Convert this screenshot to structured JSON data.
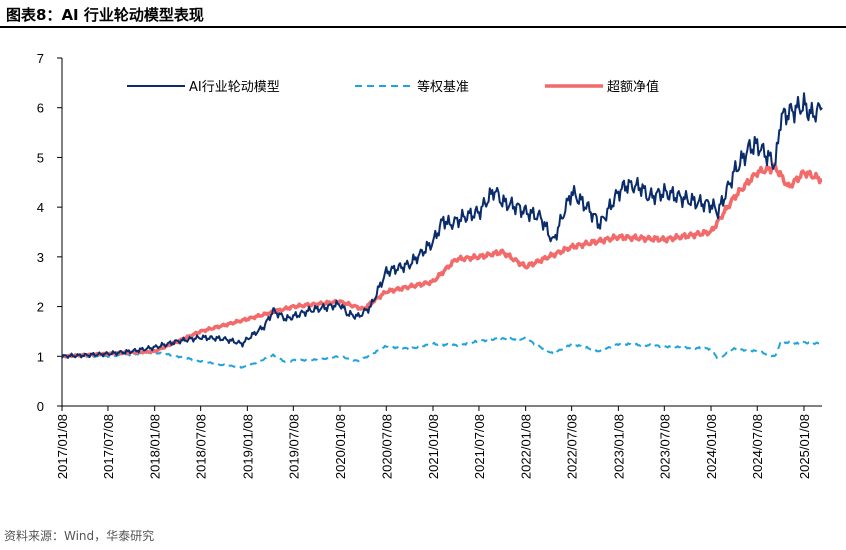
{
  "header": {
    "figure_label": "图表8：",
    "title": "AI 行业轮动模型表现"
  },
  "footer": {
    "source": "资料来源：Wind，华泰研究"
  },
  "colors": {
    "model": "#0b2c6b",
    "benchmark": "#1fa3dc",
    "excess": "#f26a6a"
  },
  "chart_data": {
    "type": "line",
    "ylim": [
      0,
      7
    ],
    "yticks": [
      "0",
      "1",
      "2",
      "3",
      "4",
      "5",
      "6",
      "7"
    ],
    "xlim": [
      "2017-01-08",
      "2025-03-20"
    ],
    "xticks": [
      "2017/01/08",
      "2017/07/08",
      "2018/01/08",
      "2018/07/08",
      "2019/01/08",
      "2019/07/08",
      "2020/01/08",
      "2020/07/08",
      "2021/01/08",
      "2021/07/08",
      "2022/01/08",
      "2022/07/08",
      "2023/01/08",
      "2023/07/08",
      "2024/01/08",
      "2024/07/08",
      "2025/01/08"
    ],
    "legend_position": "top",
    "grid": false,
    "series": [
      {
        "name": "AI行业轮动模型",
        "style": "solid",
        "points": [
          [
            "2017-01-08",
            1.0
          ],
          [
            "2017-04-08",
            1.02
          ],
          [
            "2017-07-08",
            1.05
          ],
          [
            "2017-10-08",
            1.1
          ],
          [
            "2018-01-08",
            1.18
          ],
          [
            "2018-04-08",
            1.3
          ],
          [
            "2018-07-08",
            1.38
          ],
          [
            "2018-10-08",
            1.35
          ],
          [
            "2018-12-20",
            1.25
          ],
          [
            "2019-01-08",
            1.35
          ],
          [
            "2019-03-15",
            1.6
          ],
          [
            "2019-04-20",
            1.92
          ],
          [
            "2019-06-10",
            1.75
          ],
          [
            "2019-07-08",
            1.8
          ],
          [
            "2019-09-08",
            1.92
          ],
          [
            "2019-11-08",
            1.98
          ],
          [
            "2020-01-08",
            2.05
          ],
          [
            "2020-02-08",
            1.85
          ],
          [
            "2020-03-20",
            1.8
          ],
          [
            "2020-05-08",
            2.0
          ],
          [
            "2020-07-08",
            2.7
          ],
          [
            "2020-08-08",
            2.75
          ],
          [
            "2020-10-08",
            2.85
          ],
          [
            "2021-01-08",
            3.3
          ],
          [
            "2021-02-18",
            3.75
          ],
          [
            "2021-03-15",
            3.65
          ],
          [
            "2021-05-08",
            3.8
          ],
          [
            "2021-07-08",
            3.9
          ],
          [
            "2021-09-08",
            4.35
          ],
          [
            "2021-10-08",
            4.1
          ],
          [
            "2021-12-08",
            4.0
          ],
          [
            "2022-01-08",
            3.9
          ],
          [
            "2022-03-08",
            3.8
          ],
          [
            "2022-04-26",
            3.3
          ],
          [
            "2022-06-08",
            3.9
          ],
          [
            "2022-07-08",
            4.3
          ],
          [
            "2022-09-08",
            4.0
          ],
          [
            "2022-10-28",
            3.65
          ],
          [
            "2023-01-08",
            4.3
          ],
          [
            "2023-02-08",
            4.45
          ],
          [
            "2023-04-08",
            4.4
          ],
          [
            "2023-05-08",
            4.2
          ],
          [
            "2023-07-08",
            4.3
          ],
          [
            "2023-09-08",
            4.2
          ],
          [
            "2023-11-08",
            4.1
          ],
          [
            "2024-01-08",
            4.05
          ],
          [
            "2024-02-05",
            3.9
          ],
          [
            "2024-04-08",
            4.7
          ],
          [
            "2024-06-08",
            5.2
          ],
          [
            "2024-07-08",
            5.25
          ],
          [
            "2024-09-18",
            4.85
          ],
          [
            "2024-10-08",
            5.8
          ],
          [
            "2024-11-08",
            5.9
          ],
          [
            "2025-01-08",
            6.05
          ],
          [
            "2025-02-08",
            5.85
          ],
          [
            "2025-03-20",
            6.0
          ]
        ]
      },
      {
        "name": "等权基准",
        "style": "dashed",
        "points": [
          [
            "2017-01-08",
            1.0
          ],
          [
            "2017-07-08",
            1.0
          ],
          [
            "2018-01-08",
            1.08
          ],
          [
            "2018-04-08",
            1.0
          ],
          [
            "2018-07-08",
            0.9
          ],
          [
            "2018-10-08",
            0.82
          ],
          [
            "2018-12-20",
            0.78
          ],
          [
            "2019-01-08",
            0.8
          ],
          [
            "2019-04-20",
            1.02
          ],
          [
            "2019-06-10",
            0.88
          ],
          [
            "2019-07-08",
            0.92
          ],
          [
            "2019-10-08",
            0.93
          ],
          [
            "2020-01-08",
            1.0
          ],
          [
            "2020-03-20",
            0.9
          ],
          [
            "2020-07-08",
            1.2
          ],
          [
            "2020-10-08",
            1.15
          ],
          [
            "2021-01-08",
            1.25
          ],
          [
            "2021-04-08",
            1.22
          ],
          [
            "2021-07-08",
            1.3
          ],
          [
            "2021-09-08",
            1.35
          ],
          [
            "2022-01-08",
            1.35
          ],
          [
            "2022-04-26",
            1.05
          ],
          [
            "2022-07-08",
            1.25
          ],
          [
            "2022-10-28",
            1.1
          ],
          [
            "2023-01-08",
            1.25
          ],
          [
            "2023-05-08",
            1.22
          ],
          [
            "2023-09-08",
            1.18
          ],
          [
            "2024-01-08",
            1.15
          ],
          [
            "2024-02-05",
            0.95
          ],
          [
            "2024-04-08",
            1.15
          ],
          [
            "2024-07-08",
            1.1
          ],
          [
            "2024-09-18",
            1.0
          ],
          [
            "2024-10-08",
            1.3
          ],
          [
            "2024-12-08",
            1.25
          ],
          [
            "2025-01-08",
            1.28
          ],
          [
            "2025-03-20",
            1.25
          ]
        ]
      },
      {
        "name": "超额净值",
        "style": "solid",
        "points": [
          [
            "2017-01-08",
            1.0
          ],
          [
            "2017-07-08",
            1.05
          ],
          [
            "2018-01-08",
            1.1
          ],
          [
            "2018-07-08",
            1.5
          ],
          [
            "2019-01-08",
            1.75
          ],
          [
            "2019-07-08",
            2.0
          ],
          [
            "2020-01-08",
            2.1
          ],
          [
            "2020-04-08",
            1.95
          ],
          [
            "2020-07-08",
            2.3
          ],
          [
            "2021-01-08",
            2.5
          ],
          [
            "2021-04-08",
            2.95
          ],
          [
            "2021-07-08",
            3.0
          ],
          [
            "2021-10-08",
            3.1
          ],
          [
            "2022-01-08",
            2.8
          ],
          [
            "2022-04-08",
            3.0
          ],
          [
            "2022-07-08",
            3.2
          ],
          [
            "2023-01-08",
            3.4
          ],
          [
            "2023-07-08",
            3.35
          ],
          [
            "2024-01-08",
            3.5
          ],
          [
            "2024-04-08",
            4.2
          ],
          [
            "2024-07-08",
            4.7
          ],
          [
            "2024-09-18",
            4.8
          ],
          [
            "2024-11-08",
            4.4
          ],
          [
            "2025-01-08",
            4.7
          ],
          [
            "2025-03-20",
            4.55
          ]
        ]
      }
    ]
  }
}
